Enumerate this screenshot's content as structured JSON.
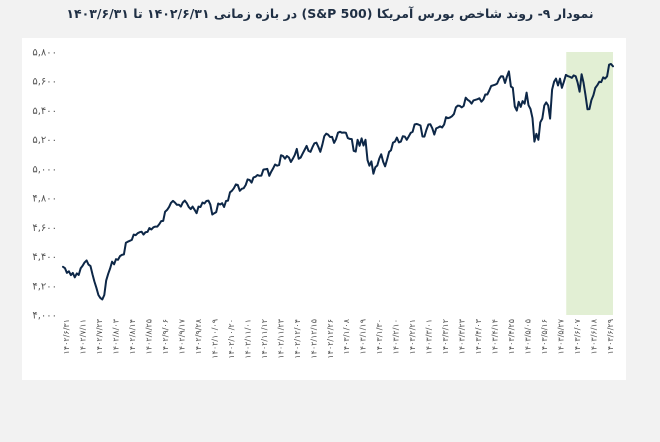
{
  "chart_data": {
    "type": "line",
    "title": "نمودار ۹- روند شاخص بورس آمریکا (S&P 500) در بازه زمانی ۱۴۰۲/۶/۳۱ تا ۱۴۰۳/۶/۳۱",
    "xlabel": "",
    "ylabel": "",
    "ylim": [
      4000,
      5800
    ],
    "grid": false,
    "line_color": "#0d2747",
    "highlight_color": "#e2efd4",
    "highlight_range": [
      0.915,
      1.0
    ],
    "yticks": [
      {
        "v": 5800,
        "label": "۵,۸۰۰"
      },
      {
        "v": 5600,
        "label": "۵,۶۰۰"
      },
      {
        "v": 5400,
        "label": "۵,۴۰۰"
      },
      {
        "v": 5200,
        "label": "۵,۲۰۰"
      },
      {
        "v": 5000,
        "label": "۵,۰۰۰"
      },
      {
        "v": 4800,
        "label": "۴,۸۰۰"
      },
      {
        "v": 4600,
        "label": "۴,۶۰۰"
      },
      {
        "v": 4400,
        "label": "۴,۴۰۰"
      },
      {
        "v": 4200,
        "label": "۴,۲۰۰"
      },
      {
        "v": 4000,
        "label": "۴,۰۰۰"
      }
    ],
    "xticks": [
      "۱۴۰۲/۶/۳۱",
      "۱۴۰۲/۷/۱۱",
      "۱۴۰۲/۷/۲۳",
      "۱۴۰۲/۸/۰۳",
      "۱۴۰۲/۸/۱۴",
      "۱۴۰۲/۸/۲۵",
      "۱۴۰۲/۹/۰۶",
      "۱۴۰۲/۹/۱۷",
      "۱۴۰۲/۹/۲۸",
      "۱۴۰۲/۱۰/۰۹",
      "۱۴۰۲/۱۰/۲۰",
      "۱۴۰۲/۱۱/۰۱",
      "۱۴۰۲/۱۱/۱۲",
      "۱۴۰۲/۱۱/۲۳",
      "۱۴۰۲/۱۲/۰۴",
      "۱۴۰۲/۱۲/۱۵",
      "۱۴۰۲/۱۲/۲۶",
      "۱۴۰۳/۱/۰۸",
      "۱۴۰۳/۱/۱۹",
      "۱۴۰۳/۱/۳۰",
      "۱۴۰۳/۲/۱۰",
      "۱۴۰۳/۲/۲۱",
      "۱۴۰۳/۳/۰۱",
      "۱۴۰۳/۳/۱۲",
      "۱۴۰۳/۳/۲۳",
      "۱۴۰۳/۴/۰۳",
      "۱۴۰۳/۴/۱۴",
      "۱۴۰۳/۴/۲۵",
      "۱۴۰۳/۵/۰۵",
      "۱۴۰۳/۵/۱۶",
      "۱۴۰۳/۵/۲۷",
      "۱۴۰۳/۶/۰۷",
      "۱۴۰۳/۶/۱۸",
      "۱۴۰۳/۶/۲۹"
    ],
    "values": [
      4330,
      4320,
      4288,
      4299,
      4273,
      4288,
      4258,
      4285,
      4274,
      4320,
      4337,
      4360,
      4374,
      4345,
      4335,
      4278,
      4229,
      4186,
      4137,
      4117,
      4107,
      4137,
      4237,
      4282,
      4318,
      4365,
      4347,
      4382,
      4378,
      4403,
      4411,
      4415,
      4495,
      4502,
      4508,
      4514,
      4550,
      4547,
      4559,
      4567,
      4570,
      4550,
      4567,
      4569,
      4595,
      4585,
      4600,
      4605,
      4605,
      4622,
      4643,
      4644,
      4707,
      4719,
      4740,
      4768,
      4781,
      4769,
      4754,
      4755,
      4742,
      4770,
      4783,
      4765,
      4740,
      4725,
      4742,
      4720,
      4697,
      4742,
      4739,
      4770,
      4763,
      4780,
      4783,
      4756,
      4688,
      4697,
      4704,
      4763,
      4756,
      4765,
      4739,
      4780,
      4783,
      4840,
      4850,
      4868,
      4894,
      4890,
      4850,
      4864,
      4868,
      4890,
      4928,
      4924,
      4906,
      4942,
      4946,
      4958,
      4953,
      4954,
      4995,
      4997,
      5000,
      4953,
      4981,
      5005,
      5030,
      5022,
      5026,
      5094,
      5088,
      5070,
      5088,
      5078,
      5047,
      5069,
      5096,
      5137,
      5069,
      5078,
      5104,
      5130,
      5157,
      5123,
      5117,
      5149,
      5175,
      5179,
      5150,
      5117,
      5165,
      5224,
      5241,
      5234,
      5218,
      5219,
      5178,
      5203,
      5248,
      5254,
      5248,
      5249,
      5248,
      5211,
      5205,
      5204,
      5124,
      5118,
      5199,
      5158,
      5209,
      5160,
      5199,
      5061,
      5022,
      5051,
      4967,
      5011,
      5023,
      5071,
      5100,
      5048,
      5018,
      5064,
      5116,
      5128,
      5180,
      5187,
      5214,
      5181,
      5187,
      5223,
      5221,
      5199,
      5222,
      5246,
      5254,
      5304,
      5308,
      5303,
      5297,
      5222,
      5221,
      5267,
      5304,
      5306,
      5278,
      5235,
      5277,
      5283,
      5291,
      5283,
      5303,
      5354,
      5347,
      5352,
      5360,
      5375,
      5421,
      5433,
      5431,
      5421,
      5431,
      5487,
      5473,
      5464,
      5447,
      5469,
      5473,
      5477,
      5483,
      5460,
      5475,
      5509,
      5509,
      5537,
      5567,
      5572,
      5576,
      5584,
      5615,
      5634,
      5633,
      5588,
      5631,
      5667,
      5564,
      5555,
      5427,
      5399,
      5459,
      5424,
      5464,
      5446,
      5522,
      5436,
      5410,
      5347,
      5187,
      5240,
      5199,
      5319,
      5344,
      5434,
      5455,
      5434,
      5344,
      5543,
      5597,
      5618,
      5571,
      5617,
      5555,
      5597,
      5643,
      5635,
      5630,
      5623,
      5640,
      5634,
      5592,
      5528,
      5648,
      5591,
      5504,
      5408,
      5409,
      5471,
      5504,
      5554,
      5573,
      5596,
      5594,
      5626,
      5618,
      5634,
      5713,
      5718,
      5702
    ]
  }
}
